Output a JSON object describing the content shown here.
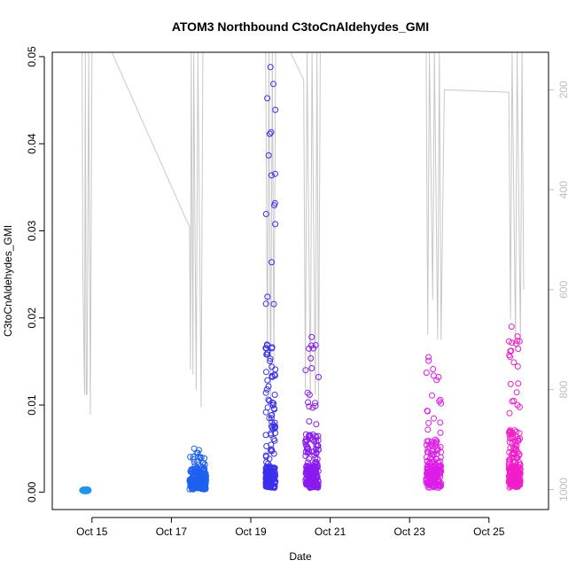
{
  "chart_data": {
    "type": "scatter",
    "title": "ATOM3 Northbound C3toCnAldehydes_GMI",
    "xlabel": "Date",
    "ylabel": "C3toCnAldehydes_GMI",
    "xlim": [
      "2016-10-14T00:00",
      "2016-10-26T12:00"
    ],
    "ylim": [
      -0.002,
      0.0505
    ],
    "x_ticks": [
      "Oct 15",
      "Oct 17",
      "Oct 19",
      "Oct 21",
      "Oct 23",
      "Oct 25"
    ],
    "y_ticks": [
      "0.00",
      "0.01",
      "0.02",
      "0.03",
      "0.04",
      "0.05"
    ],
    "y_tick_values": [
      0,
      0.01,
      0.02,
      0.03,
      0.04,
      0.05
    ],
    "right_axis": {
      "label": "",
      "inverted": true,
      "ylim": [
        1040,
        125
      ],
      "ticks": [
        "200",
        "400",
        "600",
        "800",
        "1000"
      ],
      "tick_values": [
        200,
        400,
        600,
        800,
        1000
      ],
      "color": "#bdbdbd"
    },
    "grid": false,
    "legend": "none",
    "series": [
      {
        "color": "#1e96f0",
        "segments": [
          {
            "start": "2016-10-14T18:00",
            "end": "2016-10-14T22:00",
            "base": 0.0001,
            "max": 0.0003,
            "flat": true
          }
        ]
      },
      {
        "color": "#1e60f0",
        "segments": [
          {
            "start": "2016-10-17T11:00",
            "end": "2016-10-17T21:00",
            "base": 0.0003,
            "max": 0.005
          }
        ]
      },
      {
        "color": "#3a30ec",
        "segments": [
          {
            "start": "2016-10-19T09:00",
            "end": "2016-10-19T15:00",
            "base": 0.0005,
            "max": 0.0488,
            "tall": true
          }
        ]
      },
      {
        "color": "#8a1af0",
        "segments": [
          {
            "start": "2016-10-20T09:00",
            "end": "2016-10-20T17:00",
            "base": 0.0005,
            "max": 0.0178
          }
        ]
      },
      {
        "color": "#dc1ee8",
        "segments": [
          {
            "start": "2016-10-23T10:00",
            "end": "2016-10-23T19:00",
            "base": 0.0005,
            "max": 0.0155
          }
        ]
      },
      {
        "color": "#f01ec8",
        "segments": [
          {
            "start": "2016-10-25T12:00",
            "end": "2016-10-25T19:00",
            "base": 0.0005,
            "max": 0.019
          }
        ]
      }
    ],
    "pressure_line": {
      "color": "#c8c8c8",
      "points": [
        [
          "2016-10-14T18:00",
          125
        ],
        [
          "2016-10-14T18:30",
          570
        ],
        [
          "2016-10-14T19:30",
          810
        ],
        [
          "2016-10-14T20:00",
          125
        ],
        [
          "2016-10-14T20:30",
          810
        ],
        [
          "2016-10-14T21:00",
          810
        ],
        [
          "2016-10-14T22:00",
          125
        ],
        [
          "2016-10-14T23:00",
          850
        ],
        [
          "2016-10-15T00:00",
          125
        ],
        [
          "2016-10-15T12:00",
          125
        ],
        [
          "2016-10-17T11:00",
          475
        ],
        [
          "2016-10-17T11:30",
          760
        ],
        [
          "2016-10-17T12:00",
          125
        ],
        [
          "2016-10-17T13:00",
          770
        ],
        [
          "2016-10-17T13:30",
          125
        ],
        [
          "2016-10-17T15:00",
          800
        ],
        [
          "2016-10-17T16:00",
          125
        ],
        [
          "2016-10-17T18:00",
          835
        ],
        [
          "2016-10-17T19:00",
          125
        ],
        [
          "2016-10-19T09:00",
          125
        ],
        [
          "2016-10-19T10:00",
          740
        ],
        [
          "2016-10-19T11:00",
          125
        ],
        [
          "2016-10-19T12:00",
          830
        ],
        [
          "2016-10-19T13:00",
          125
        ],
        [
          "2016-10-19T14:00",
          750
        ],
        [
          "2016-10-19T15:00",
          125
        ],
        [
          "2016-10-20T00:00",
          125
        ],
        [
          "2016-10-20T08:00",
          180
        ],
        [
          "2016-10-20T09:00",
          800
        ],
        [
          "2016-10-20T10:00",
          125
        ],
        [
          "2016-10-20T12:00",
          820
        ],
        [
          "2016-10-20T13:00",
          125
        ],
        [
          "2016-10-20T15:00",
          810
        ],
        [
          "2016-10-20T16:00",
          125
        ],
        [
          "2016-10-20T17:00",
          830
        ],
        [
          "2016-10-20T18:00",
          125
        ],
        [
          "2016-10-23T10:00",
          125
        ],
        [
          "2016-10-23T11:00",
          690
        ],
        [
          "2016-10-23T12:00",
          125
        ],
        [
          "2016-10-23T14:00",
          620
        ],
        [
          "2016-10-23T15:00",
          125
        ],
        [
          "2016-10-23T17:00",
          700
        ],
        [
          "2016-10-23T18:00",
          125
        ],
        [
          "2016-10-23T19:00",
          700
        ],
        [
          "2016-10-23T21:00",
          200
        ],
        [
          "2016-10-25T12:00",
          205
        ],
        [
          "2016-10-25T13:00",
          660
        ],
        [
          "2016-10-25T14:00",
          125
        ],
        [
          "2016-10-25T16:00",
          700
        ],
        [
          "2016-10-25T17:00",
          125
        ],
        [
          "2016-10-25T19:00",
          700
        ],
        [
          "2016-10-25T20:00",
          125
        ],
        [
          "2016-10-25T21:00",
          600
        ]
      ]
    }
  }
}
